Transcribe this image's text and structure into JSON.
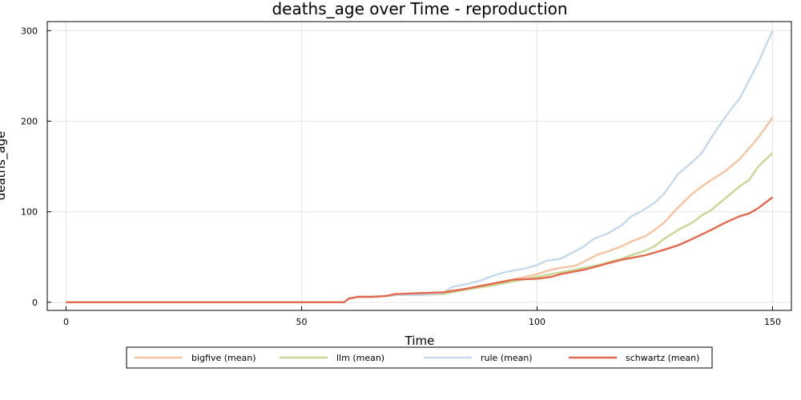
{
  "chart_data": {
    "type": "line",
    "title": "deaths_age over Time - reproduction",
    "xlabel": "Time",
    "ylabel": "deaths_age",
    "xlim": [
      -4,
      154
    ],
    "ylim": [
      -9,
      310
    ],
    "xticks": [
      0,
      50,
      100,
      150
    ],
    "yticks": [
      0,
      100,
      200,
      300
    ],
    "grid": true,
    "legend_position": "bottom",
    "series": [
      {
        "name": "bigfive (mean)",
        "color": "#f4c4a2",
        "x": [
          0,
          59,
          60,
          62,
          65,
          68,
          70,
          75,
          80,
          85,
          90,
          95,
          100,
          103,
          105,
          108,
          110,
          113,
          115,
          118,
          120,
          123,
          125,
          127,
          130,
          133,
          135,
          137,
          140,
          143,
          145,
          147,
          150
        ],
        "y": [
          0,
          0,
          4,
          6,
          6,
          7,
          8,
          8,
          9,
          14,
          20,
          25,
          31,
          36,
          38,
          40,
          45,
          53,
          56,
          62,
          67,
          73,
          80,
          88,
          105,
          120,
          128,
          135,
          145,
          158,
          170,
          182,
          204
        ]
      },
      {
        "name": "llm (mean)",
        "color": "#c7d896",
        "x": [
          0,
          59,
          60,
          62,
          65,
          68,
          70,
          75,
          80,
          85,
          90,
          95,
          100,
          103,
          105,
          108,
          110,
          113,
          115,
          118,
          120,
          123,
          125,
          127,
          130,
          133,
          135,
          137,
          140,
          143,
          145,
          147,
          150
        ],
        "y": [
          0,
          0,
          4,
          6,
          6,
          7,
          8,
          8,
          9,
          14,
          18,
          23,
          28,
          31,
          33,
          36,
          38,
          41,
          44,
          48,
          52,
          57,
          62,
          70,
          80,
          88,
          96,
          102,
          115,
          128,
          135,
          150,
          165
        ]
      },
      {
        "name": "rule (mean)",
        "color": "#c5d9ec",
        "x": [
          0,
          59,
          60,
          62,
          65,
          68,
          70,
          75,
          80,
          82,
          85,
          88,
          90,
          93,
          95,
          98,
          100,
          102,
          105,
          108,
          110,
          112,
          115,
          118,
          120,
          122,
          125,
          127,
          130,
          133,
          135,
          137,
          140,
          143,
          145,
          147,
          150
        ],
        "y": [
          0,
          0,
          4,
          6,
          6,
          7,
          8,
          8,
          10,
          17,
          20,
          24,
          28,
          33,
          35,
          38,
          41,
          46,
          48,
          56,
          62,
          70,
          76,
          85,
          95,
          100,
          110,
          120,
          142,
          155,
          165,
          182,
          205,
          225,
          245,
          265,
          300
        ]
      },
      {
        "name": "schwartz (mean)",
        "color": "#e2694e",
        "x": [
          0,
          59,
          60,
          62,
          65,
          68,
          70,
          75,
          80,
          85,
          90,
          95,
          100,
          103,
          105,
          108,
          110,
          113,
          115,
          118,
          120,
          123,
          125,
          127,
          130,
          133,
          135,
          137,
          140,
          143,
          145,
          147,
          150
        ],
        "y": [
          0,
          0,
          4,
          6,
          6,
          7,
          9,
          10,
          11,
          15,
          20,
          25,
          26,
          28,
          31,
          34,
          36,
          40,
          43,
          47,
          49,
          52,
          55,
          58,
          63,
          70,
          75,
          80,
          88,
          95,
          98,
          104,
          116
        ]
      }
    ]
  }
}
